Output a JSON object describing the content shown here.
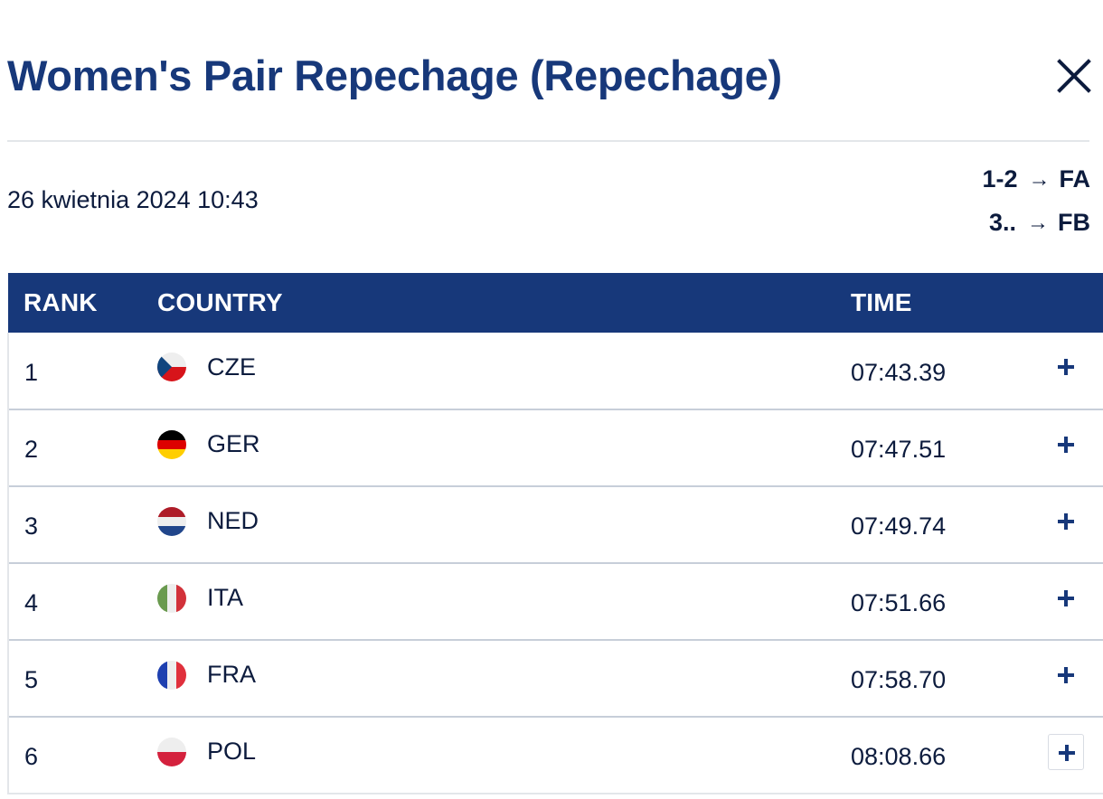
{
  "modal": {
    "title": "Women's Pair Repechage (Repechage)",
    "close_icon": "close-icon"
  },
  "race": {
    "date": "26 kwietnia 2024 10:43",
    "progression": [
      {
        "places": "1-2",
        "arrow": "→",
        "final": "FA"
      },
      {
        "places": "3..",
        "arrow": "→",
        "final": "FB"
      }
    ]
  },
  "table": {
    "headers": {
      "rank": "RANK",
      "country": "COUNTRY",
      "time": "TIME"
    },
    "rows": [
      {
        "rank": "1",
        "country": "CZE",
        "time": "07:43.39",
        "flag": "czech-flag-icon"
      },
      {
        "rank": "2",
        "country": "GER",
        "time": "07:47.51",
        "flag": "german-flag-icon"
      },
      {
        "rank": "3",
        "country": "NED",
        "time": "07:49.74",
        "flag": "dutch-flag-icon"
      },
      {
        "rank": "4",
        "country": "ITA",
        "time": "07:51.66",
        "flag": "italian-flag-icon"
      },
      {
        "rank": "5",
        "country": "FRA",
        "time": "07:58.70",
        "flag": "french-flag-icon"
      },
      {
        "rank": "6",
        "country": "POL",
        "time": "08:08.66",
        "flag": "polish-flag-icon"
      }
    ],
    "expand_icon": "plus-icon"
  },
  "colors": {
    "brand_navy": "#17387a",
    "text": "#0c1b3d",
    "row_border": "#c7ced9"
  }
}
